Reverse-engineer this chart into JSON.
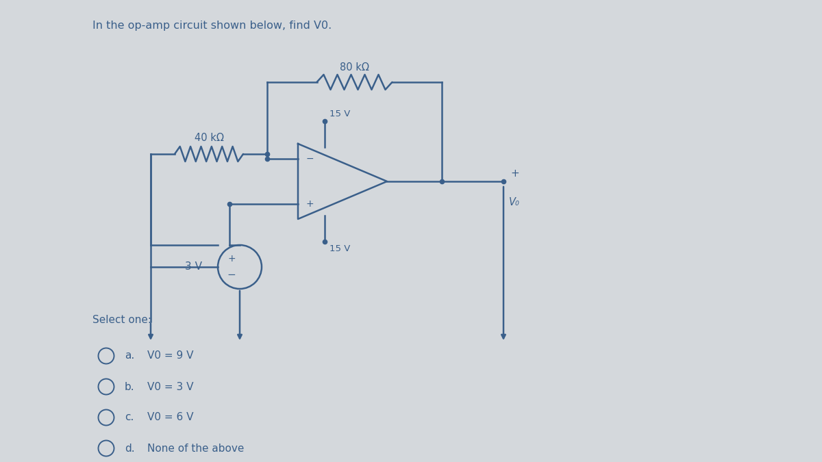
{
  "title": "In the op-amp circuit shown below, find V0.",
  "bg_color": "#d4d8dc",
  "text_color": "#3a5f8a",
  "circuit_color": "#3a5f8a",
  "resistor_label_1": "80 kΩ",
  "resistor_label_2": "40 kΩ",
  "voltage_source_label": "3 V",
  "v15_top": "15 V",
  "v15_bot": "15 V",
  "vo_label": "V₀",
  "select_one": "Select one:",
  "options": [
    [
      "a.",
      "V0 = 9 V"
    ],
    [
      "b.",
      "V0 = 3 V"
    ],
    [
      "c.",
      "V0 = 6 V"
    ],
    [
      "d.",
      "None of the above"
    ]
  ]
}
